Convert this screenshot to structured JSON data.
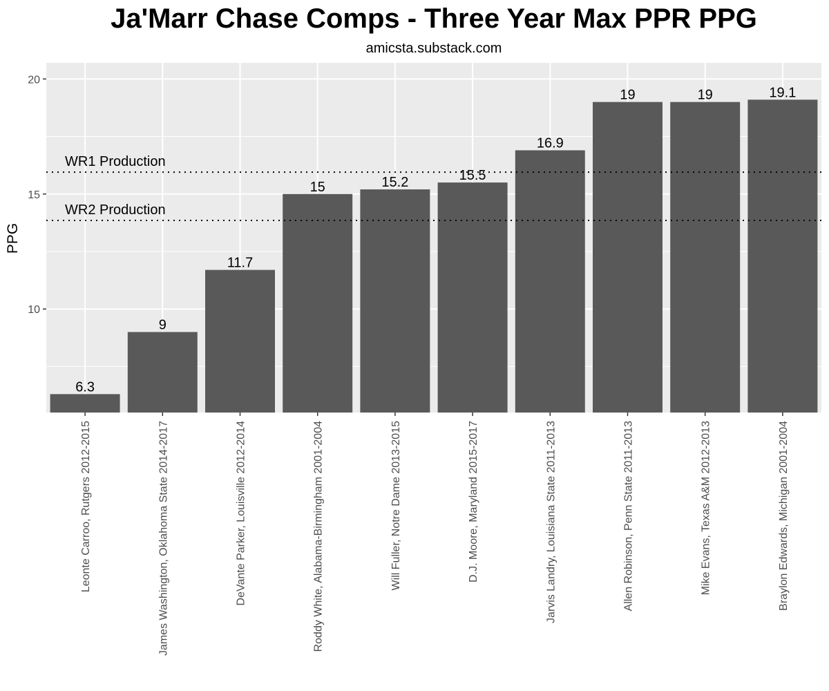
{
  "chart_data": {
    "type": "bar",
    "title": "Ja'Marr Chase Comps - Three Year Max PPR PPG",
    "subtitle": "amicsta.substack.com",
    "xlabel": "",
    "ylabel": "PPG",
    "ylim": [
      5.5,
      20.7
    ],
    "yticks": [
      10,
      15,
      20
    ],
    "grid": true,
    "categories": [
      "Leonte Carroo, Rutgers 2012-2015",
      "James Washington, Oklahoma State 2014-2017",
      "DeVante Parker, Louisville 2012-2014",
      "Roddy White, Alabama-Birmingham 2001-2004",
      "Will Fuller, Notre Dame 2013-2015",
      "D.J. Moore, Maryland 2015-2017",
      "Jarvis Landry, Louisiana State 2011-2013",
      "Allen Robinson, Penn State 2011-2013",
      "Mike Evans, Texas A&M 2012-2013",
      "Braylon Edwards, Michigan 2001-2004"
    ],
    "values": [
      6.3,
      9,
      11.7,
      15,
      15.2,
      15.5,
      16.9,
      19,
      19,
      19.1
    ],
    "value_labels": [
      "6.3",
      "9",
      "11.7",
      "15",
      "15.2",
      "15.5",
      "16.9",
      "19",
      "19",
      "19.1"
    ],
    "reference_lines": [
      {
        "label": "WR1 Production",
        "value": 15.95
      },
      {
        "label": "WR2 Production",
        "value": 13.85
      }
    ],
    "colors": {
      "bar": "#595959",
      "panel": "#ebebeb",
      "grid": "#ffffff",
      "reference": "#000000"
    }
  }
}
